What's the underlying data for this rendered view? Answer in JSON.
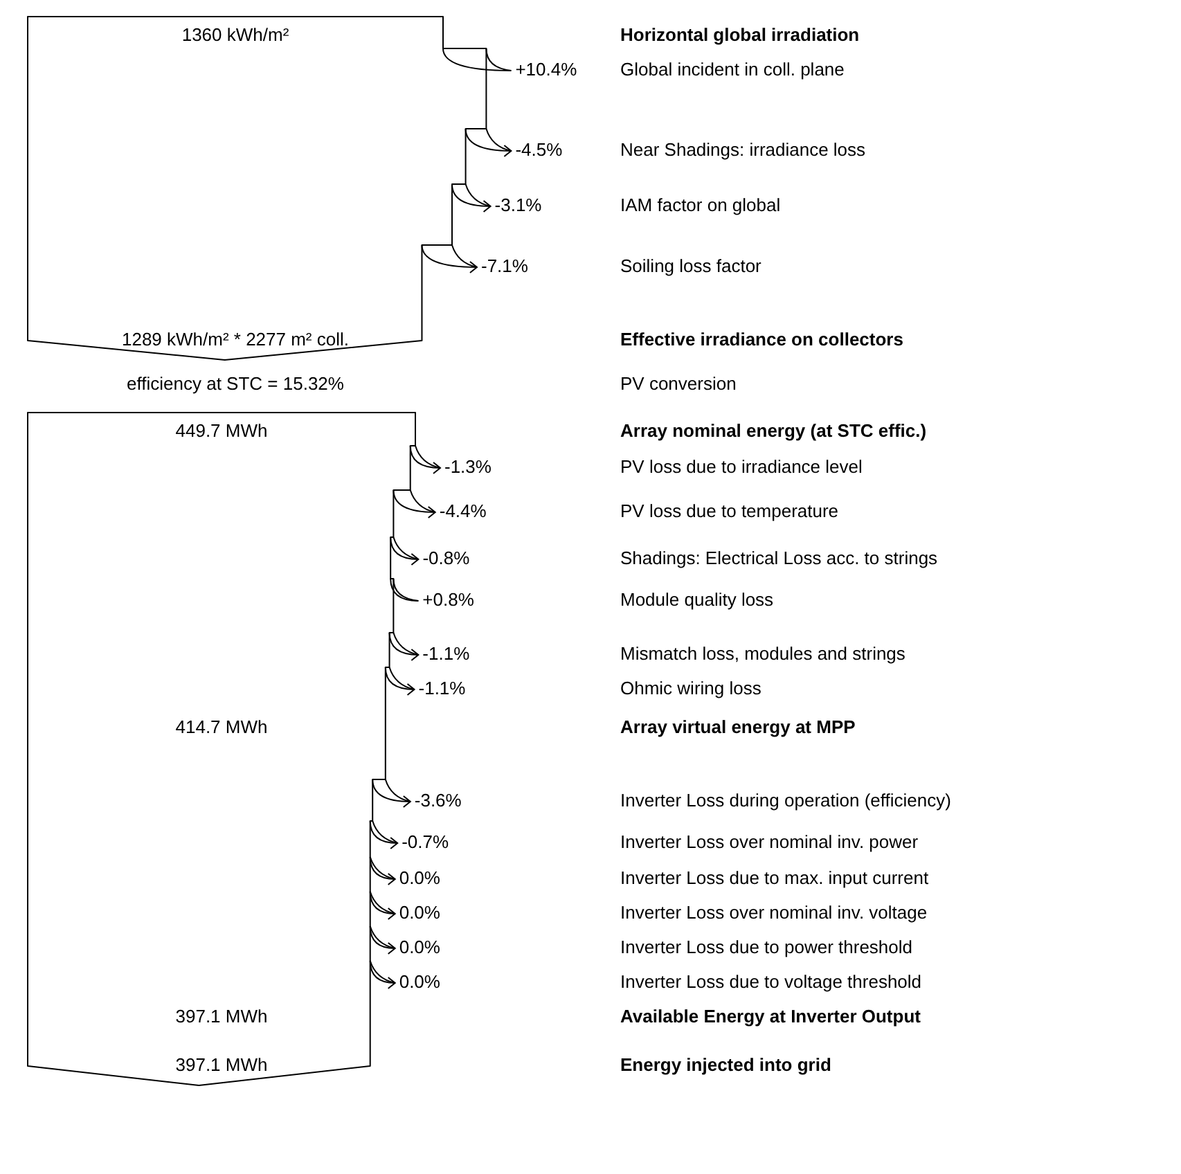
{
  "chart_data": {
    "type": "other",
    "categories": [
      "Horizontal global irradiation",
      "Global incident in coll. plane",
      "Near Shadings: irradiance loss",
      "IAM factor on global",
      "Soiling loss factor",
      "Effective irradiance on collectors",
      "PV conversion",
      "Array nominal energy (at STC effic.)",
      "PV loss due to irradiance level",
      "PV loss due to temperature",
      "Shadings: Electrical Loss acc. to strings",
      "Module quality loss",
      "Mismatch loss, modules and strings",
      "Ohmic wiring loss",
      "Array virtual energy at MPP",
      "Inverter Loss during operation (efficiency)",
      "Inverter Loss over nominal inv. power",
      "Inverter Loss due to max. input current",
      "Inverter Loss over nominal inv. voltage",
      "Inverter Loss due to power threshold",
      "Inverter Loss due to voltage threshold",
      "Available Energy at Inverter Output",
      "Energy injected into grid"
    ],
    "series": [
      {
        "values": [
          1360,
          null,
          null,
          null,
          null,
          1289,
          null,
          449.7,
          null,
          null,
          null,
          null,
          null,
          null,
          414.7,
          null,
          null,
          null,
          null,
          null,
          null,
          397.1,
          397.1
        ],
        "value_labels": [
          "1360 kWh/m²",
          null,
          null,
          null,
          null,
          "1289 kWh/m² * 2277 m² coll.",
          null,
          "449.7 MWh",
          null,
          null,
          null,
          null,
          null,
          null,
          "414.7 MWh",
          null,
          null,
          null,
          null,
          null,
          null,
          "397.1 MWh",
          "397.1 MWh"
        ]
      },
      {
        "values": [
          null,
          10.4,
          -4.5,
          -3.1,
          -7.1,
          null,
          null,
          null,
          -1.3,
          -4.4,
          -0.8,
          0.8,
          -1.1,
          -1.1,
          null,
          -3.6,
          -0.7,
          0.0,
          0.0,
          0.0,
          0.0,
          null,
          null
        ],
        "value_labels": [
          null,
          "+10.4%",
          "-4.5%",
          "-3.1%",
          "-7.1%",
          null,
          null,
          null,
          "-1.3%",
          "-4.4%",
          "-0.8%",
          "+0.8%",
          "-1.1%",
          "-1.1%",
          null,
          "-3.6%",
          "-0.7%",
          "0.0%",
          "0.0%",
          "0.0%",
          "0.0%",
          null,
          null
        ]
      },
      {
        "values": [
          null,
          null,
          null,
          null,
          null,
          null,
          15.32,
          null,
          null,
          null,
          null,
          null,
          null,
          null,
          null,
          null,
          null,
          null,
          null,
          null,
          null,
          null,
          null
        ],
        "value_labels": [
          null,
          null,
          null,
          null,
          null,
          null,
          "efficiency at STC = 15.32%",
          null,
          null,
          null,
          null,
          null,
          null,
          null,
          null,
          null,
          null,
          null,
          null,
          null,
          null,
          null,
          null
        ]
      }
    ]
  }
}
